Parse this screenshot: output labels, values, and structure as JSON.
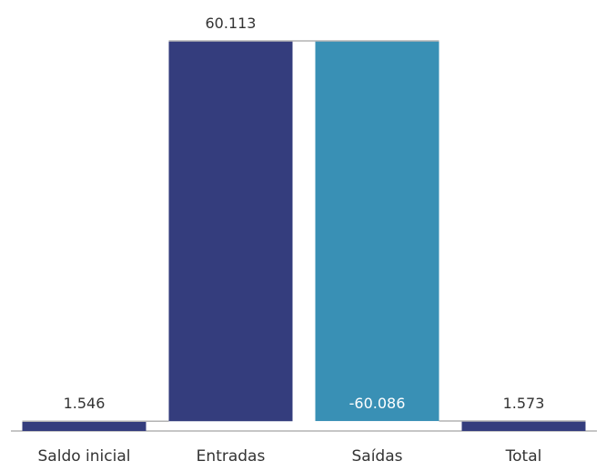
{
  "chart_data": {
    "type": "bar",
    "subtype": "waterfall",
    "categories": [
      "Saldo inicial",
      "Entradas",
      "Saídas",
      "Total"
    ],
    "values": [
      1546,
      60113,
      -60086,
      1573
    ],
    "value_labels": [
      "1.546",
      "60.113",
      "-60.086",
      "1.573"
    ],
    "bar_kind": [
      "total",
      "increase",
      "decrease",
      "total"
    ],
    "title": "",
    "xlabel": "",
    "ylabel": "",
    "ylim": [
      0,
      61660
    ],
    "grid": false,
    "legend": "none",
    "colors": {
      "total": "#343d7d",
      "increase": "#343d7d",
      "decrease": "#3990b5",
      "connector": "#b3b3b3",
      "label_dark": "#333333",
      "label_light": "#ffffff"
    }
  }
}
